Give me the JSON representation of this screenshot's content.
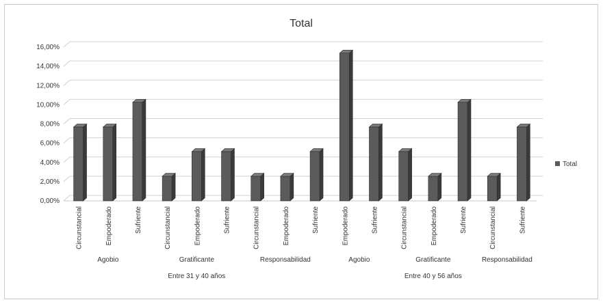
{
  "chart_data": {
    "type": "bar",
    "title": "Total",
    "ylim": [
      0,
      16
    ],
    "y_ticks": [
      "0,00%",
      "2,00%",
      "4,00%",
      "6,00%",
      "8,00%",
      "10,00%",
      "12,00%",
      "14,00%",
      "16,00%"
    ],
    "categories": [
      "Circunstancial",
      "Empoderado",
      "Sufriente",
      "Circunstancial",
      "Empoderado",
      "Sufriente",
      "Circunstancial",
      "Empoderado",
      "Sufriente",
      "Empoderado",
      "Sufriente",
      "Circunstancial",
      "Empoderado",
      "Sufriente",
      "Circunstancial",
      "Sufriente"
    ],
    "groups": [
      {
        "label": "Agobio",
        "count": 3
      },
      {
        "label": "Gratificante",
        "count": 3
      },
      {
        "label": "Responsabilidad",
        "count": 3
      },
      {
        "label": "Agobio",
        "count": 2
      },
      {
        "label": "Gratificante",
        "count": 3
      },
      {
        "label": "Responsabilidad",
        "count": 2
      }
    ],
    "age_groups": [
      {
        "label": "Entre 31 y 40 años",
        "count": 9
      },
      {
        "label": "Entre 40 y 56 años",
        "count": 7
      }
    ],
    "series": [
      {
        "name": "Total",
        "values": [
          7.69,
          7.69,
          10.26,
          2.56,
          5.13,
          5.13,
          2.56,
          2.56,
          5.13,
          15.38,
          7.69,
          5.13,
          2.56,
          10.26,
          2.56,
          7.69
        ]
      }
    ],
    "legend_position": "right",
    "grid": true,
    "bar_color": "#5b5b5b",
    "bar_side_color": "#3a3a3a",
    "bar_top_color": "#7a7a7a"
  }
}
